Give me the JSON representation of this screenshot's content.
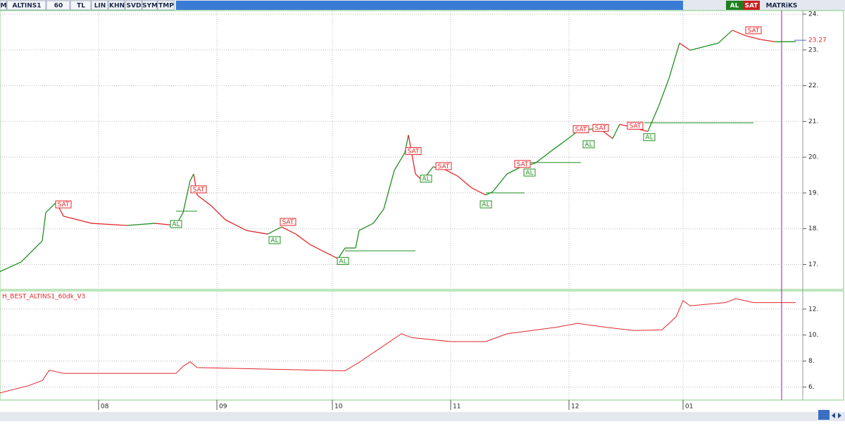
{
  "toolbar": {
    "items": [
      "M",
      "ALTINS1",
      "60",
      "TL",
      "LIN",
      "KHN",
      "SVD",
      "SYM",
      "TMP"
    ],
    "right": [
      "AL",
      "SAT",
      "MATRiKS"
    ]
  },
  "chart_data": [
    {
      "type": "line",
      "colors": {
        "up": "#1f8f1f",
        "down": "#e3262b"
      },
      "x": [
        0,
        30,
        60,
        65,
        80,
        90,
        130,
        180,
        220,
        250,
        260,
        270,
        275,
        280,
        300,
        320,
        350,
        380,
        400,
        420,
        440,
        460,
        480,
        490,
        505,
        510,
        530,
        545,
        560,
        575,
        580,
        590,
        600,
        615,
        630,
        650,
        670,
        690,
        700,
        720,
        740,
        760,
        780,
        800,
        820,
        850,
        870,
        880,
        900,
        920,
        935,
        950,
        965,
        980,
        1000,
        1020,
        1040,
        1060,
        1080,
        1100,
        1130
      ],
      "values": [
        16.8,
        17.07,
        17.66,
        18.45,
        18.74,
        18.35,
        18.15,
        18.09,
        18.15,
        18.09,
        18.45,
        19.34,
        19.53,
        18.94,
        18.64,
        18.25,
        17.95,
        17.85,
        18.05,
        17.85,
        17.56,
        17.36,
        17.16,
        17.46,
        17.46,
        17.95,
        18.15,
        18.55,
        19.63,
        20.13,
        20.62,
        19.53,
        19.34,
        19.73,
        19.67,
        19.47,
        19.14,
        18.94,
        19.04,
        19.53,
        19.73,
        19.83,
        20.13,
        20.42,
        20.72,
        20.82,
        20.52,
        20.92,
        20.82,
        20.72,
        21.41,
        22.2,
        23.19,
        22.99,
        23.09,
        23.19,
        23.55,
        23.39,
        23.29,
        23.23,
        23.23
      ],
      "xlim": [
        0,
        1140
      ],
      "ylim": [
        16.3,
        24.1
      ],
      "yticks": [
        {
          "value": 17,
          "label": "17."
        },
        {
          "value": 18,
          "label": "18."
        },
        {
          "value": 19,
          "label": "19."
        },
        {
          "value": 20,
          "label": "20."
        },
        {
          "value": 21,
          "label": "21."
        },
        {
          "value": 22,
          "label": "22."
        },
        {
          "value": 23,
          "label": "23."
        },
        {
          "value": 24,
          "label": "24."
        }
      ],
      "last_value": 23.27,
      "grid": true,
      "levels": [
        {
          "x1": 250,
          "x2": 280,
          "y": 18.49
        },
        {
          "x1": 490,
          "x2": 590,
          "y": 17.38
        },
        {
          "x1": 690,
          "x2": 745,
          "y": 19.0
        },
        {
          "x1": 745,
          "x2": 825,
          "y": 19.85
        },
        {
          "x1": 915,
          "x2": 1070,
          "y": 20.96
        }
      ],
      "annotations": [
        {
          "text": "SAT",
          "x": 90,
          "y": 18.68
        },
        {
          "text": "AL",
          "x": 250,
          "y": 18.13
        },
        {
          "text": "SAT",
          "x": 282,
          "y": 19.1
        },
        {
          "text": "SAT",
          "x": 409,
          "y": 18.19
        },
        {
          "text": "AL",
          "x": 390,
          "y": 17.68
        },
        {
          "text": "AL",
          "x": 487,
          "y": 17.1
        },
        {
          "text": "SAT",
          "x": 587,
          "y": 20.17
        },
        {
          "text": "AL",
          "x": 605,
          "y": 19.4
        },
        {
          "text": "SAT",
          "x": 630,
          "y": 19.75
        },
        {
          "text": "AL",
          "x": 690,
          "y": 18.68
        },
        {
          "text": "SAT",
          "x": 742,
          "y": 19.81
        },
        {
          "text": "AL",
          "x": 752,
          "y": 19.57
        },
        {
          "text": "SAT",
          "x": 825,
          "y": 20.78
        },
        {
          "text": "SAT",
          "x": 853,
          "y": 20.82
        },
        {
          "text": "AL",
          "x": 836,
          "y": 20.36
        },
        {
          "text": "SAT",
          "x": 902,
          "y": 20.88
        },
        {
          "text": "AL",
          "x": 922,
          "y": 20.56
        },
        {
          "text": "SAT",
          "x": 1070,
          "y": 23.55
        }
      ]
    },
    {
      "type": "line",
      "title": "H_BEST_ALTINS1_60dk_V3",
      "color": "#e3262b",
      "x": [
        0,
        40,
        60,
        70,
        90,
        250,
        260,
        270,
        280,
        490,
        510,
        540,
        570,
        585,
        640,
        690,
        720,
        790,
        820,
        860,
        900,
        940,
        960,
        970,
        980,
        1030,
        1045,
        1070,
        1130
      ],
      "values": [
        5.55,
        6.1,
        6.5,
        7.3,
        7.05,
        7.05,
        7.6,
        7.95,
        7.5,
        7.25,
        7.9,
        9.0,
        10.1,
        9.8,
        9.5,
        9.5,
        10.1,
        10.6,
        10.9,
        10.6,
        10.35,
        10.4,
        11.4,
        12.65,
        12.25,
        12.5,
        12.8,
        12.5,
        12.5
      ],
      "xlim": [
        0,
        1140
      ],
      "ylim": [
        5.0,
        13.4
      ],
      "yticks": [
        {
          "value": 6,
          "label": "6."
        },
        {
          "value": 8,
          "label": "8."
        },
        {
          "value": 10,
          "label": "10."
        },
        {
          "value": 12,
          "label": "12."
        }
      ],
      "xticks": [
        {
          "value": 140,
          "label": "08"
        },
        {
          "value": 308,
          "label": "09"
        },
        {
          "value": 472,
          "label": "10"
        },
        {
          "value": 640,
          "label": "11"
        },
        {
          "value": 808,
          "label": "12"
        },
        {
          "value": 970,
          "label": "01"
        }
      ],
      "grid": true
    }
  ]
}
